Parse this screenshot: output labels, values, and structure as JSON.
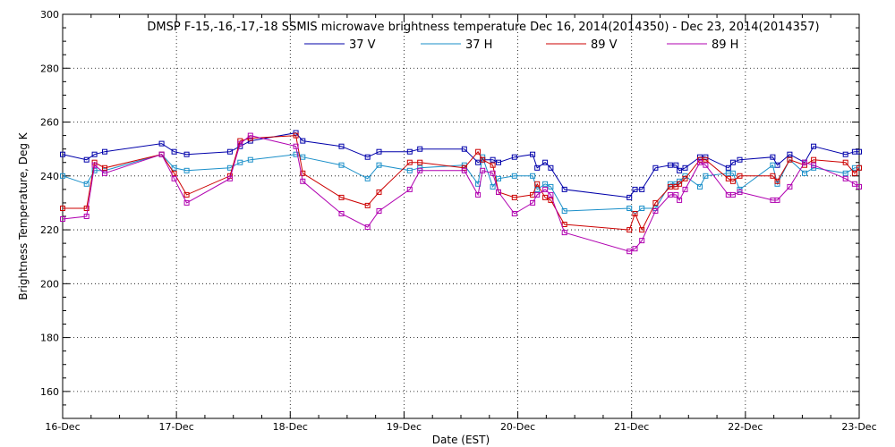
{
  "chart_data": {
    "type": "line",
    "title": "DMSP F-15,-16,-17,-18 SSMIS microwave brightness temperature Dec 16, 2014(2014350) - Dec 23, 2014(2014357)",
    "xlabel": "Date (EST)",
    "ylabel": "Brightness Temperature, Deg K",
    "xlim": [
      0,
      7
    ],
    "ylim": [
      150,
      300
    ],
    "x_tick_labels": [
      "16-Dec",
      "17-Dec",
      "18-Dec",
      "19-Dec",
      "20-Dec",
      "21-Dec",
      "22-Dec",
      "23-Dec"
    ],
    "y_ticks": [
      160,
      180,
      200,
      220,
      240,
      260,
      280,
      300
    ],
    "grid": true,
    "legend_position": "top-center",
    "series": [
      {
        "name": "37 V",
        "color": "#0000aa",
        "x": [
          0.0,
          0.21,
          0.28,
          0.37,
          0.87,
          0.98,
          1.09,
          1.47,
          1.56,
          1.65,
          2.05,
          2.11,
          2.45,
          2.68,
          2.78,
          3.05,
          3.14,
          3.53,
          3.65,
          3.69,
          3.78,
          3.83,
          3.97,
          4.13,
          4.17,
          4.24,
          4.29,
          4.41,
          4.98,
          5.03,
          5.09,
          5.21,
          5.34,
          5.39,
          5.42,
          5.47,
          5.6,
          5.65,
          5.85,
          5.89,
          5.95,
          6.24,
          6.28,
          6.39,
          6.52,
          6.6,
          6.88,
          6.96,
          7.0
        ],
        "y": [
          248,
          246,
          248,
          249,
          252,
          249,
          248,
          249,
          251,
          253,
          256,
          253,
          251,
          247,
          249,
          249,
          250,
          250,
          245,
          246,
          246,
          245,
          247,
          248,
          243,
          245,
          243,
          235,
          232,
          235,
          235,
          243,
          244,
          244,
          242,
          243,
          247,
          247,
          243,
          245,
          246,
          247,
          244,
          248,
          245,
          251,
          248,
          249,
          249
        ]
      },
      {
        "name": "37 H",
        "color": "#1a8fc9",
        "x": [
          0.0,
          0.21,
          0.28,
          0.37,
          0.87,
          0.98,
          1.09,
          1.47,
          1.56,
          1.65,
          2.05,
          2.11,
          2.45,
          2.68,
          2.78,
          3.05,
          3.14,
          3.53,
          3.65,
          3.69,
          3.78,
          3.83,
          3.97,
          4.13,
          4.17,
          4.24,
          4.29,
          4.41,
          4.98,
          5.03,
          5.09,
          5.21,
          5.34,
          5.39,
          5.42,
          5.47,
          5.6,
          5.65,
          5.85,
          5.89,
          5.95,
          6.24,
          6.28,
          6.39,
          6.52,
          6.6,
          6.88,
          6.96,
          7.0
        ],
        "y": [
          240,
          237,
          242,
          242,
          248,
          243,
          242,
          243,
          245,
          246,
          248,
          247,
          244,
          239,
          244,
          242,
          243,
          244,
          237,
          247,
          236,
          239,
          240,
          240,
          235,
          237,
          236,
          227,
          228,
          226,
          228,
          228,
          237,
          237,
          238,
          240,
          236,
          240,
          241,
          241,
          235,
          244,
          237,
          246,
          241,
          243,
          241,
          243,
          243
        ]
      },
      {
        "name": "89 V",
        "color": "#cc0000",
        "x": [
          0.0,
          0.21,
          0.28,
          0.37,
          0.87,
          0.98,
          1.09,
          1.47,
          1.56,
          1.65,
          2.05,
          2.11,
          2.45,
          2.68,
          2.78,
          3.05,
          3.14,
          3.53,
          3.65,
          3.69,
          3.78,
          3.83,
          3.97,
          4.13,
          4.17,
          4.24,
          4.29,
          4.41,
          4.98,
          5.03,
          5.09,
          5.21,
          5.34,
          5.39,
          5.42,
          5.47,
          5.6,
          5.65,
          5.85,
          5.89,
          5.95,
          6.24,
          6.28,
          6.39,
          6.52,
          6.6,
          6.88,
          6.96,
          7.0
        ],
        "y": [
          228,
          228,
          245,
          243,
          248,
          241,
          233,
          240,
          253,
          254,
          255,
          241,
          232,
          229,
          234,
          245,
          245,
          243,
          249,
          246,
          244,
          234,
          232,
          233,
          237,
          232,
          231,
          222,
          220,
          226,
          220,
          230,
          236,
          236,
          237,
          239,
          246,
          246,
          239,
          238,
          240,
          240,
          238,
          246,
          244,
          246,
          245,
          241,
          243
        ]
      },
      {
        "name": "89 H",
        "color": "#b000b0",
        "x": [
          0.0,
          0.21,
          0.28,
          0.37,
          0.87,
          0.98,
          1.09,
          1.47,
          1.56,
          1.65,
          2.05,
          2.11,
          2.45,
          2.68,
          2.78,
          3.05,
          3.14,
          3.53,
          3.65,
          3.69,
          3.78,
          3.83,
          3.97,
          4.13,
          4.17,
          4.24,
          4.29,
          4.41,
          4.98,
          5.03,
          5.09,
          5.21,
          5.34,
          5.39,
          5.42,
          5.47,
          5.6,
          5.65,
          5.85,
          5.89,
          5.95,
          6.24,
          6.28,
          6.39,
          6.52,
          6.6,
          6.88,
          6.96,
          7.0
        ],
        "y": [
          224,
          225,
          244,
          241,
          248,
          239,
          230,
          239,
          252,
          255,
          251,
          238,
          226,
          221,
          227,
          235,
          242,
          242,
          233,
          242,
          241,
          234,
          226,
          230,
          233,
          235,
          233,
          219,
          212,
          213,
          216,
          227,
          233,
          233,
          231,
          235,
          245,
          244,
          233,
          233,
          234,
          231,
          231,
          236,
          245,
          244,
          239,
          237,
          236
        ]
      }
    ]
  }
}
